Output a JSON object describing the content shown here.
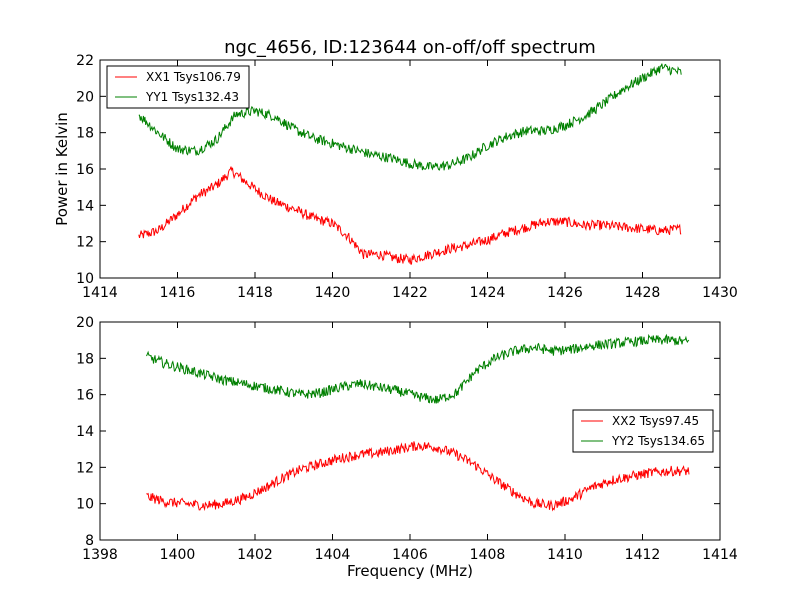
{
  "chart_data": [
    {
      "type": "line",
      "title": "ngc_4656, ID:123644 on-off/off spectrum",
      "xlabel": "",
      "ylabel": "Power in Kelvin",
      "xlim": [
        1414,
        1430
      ],
      "ylim": [
        10,
        22
      ],
      "xticks": [
        1414,
        1416,
        1418,
        1420,
        1422,
        1424,
        1426,
        1428,
        1430
      ],
      "yticks": [
        10,
        12,
        14,
        16,
        18,
        20,
        22
      ],
      "legend": "top-left",
      "grid": false,
      "series": [
        {
          "name": "XX1 Tsys106.79",
          "color": "#ff0000",
          "x": [
            1415.0,
            1415.5,
            1416.0,
            1416.5,
            1417.0,
            1417.4,
            1418.0,
            1418.5,
            1419.0,
            1419.5,
            1420.0,
            1420.4,
            1420.8,
            1421.2,
            1421.6,
            1422.0,
            1422.5,
            1423.0,
            1423.5,
            1424.0,
            1424.5,
            1425.0,
            1425.5,
            1426.0,
            1426.5,
            1427.0,
            1427.5,
            1428.0,
            1428.5,
            1429.0
          ],
          "values": [
            12.3,
            12.6,
            13.5,
            14.5,
            15.1,
            15.9,
            14.9,
            14.2,
            13.8,
            13.3,
            13.0,
            12.3,
            11.3,
            11.3,
            11.1,
            11.0,
            11.3,
            11.6,
            11.8,
            12.1,
            12.5,
            12.8,
            13.1,
            13.1,
            12.9,
            12.9,
            12.8,
            12.7,
            12.6,
            12.7
          ]
        },
        {
          "name": "YY1 Tsys132.43",
          "color": "#008000",
          "x": [
            1415.0,
            1415.5,
            1416.0,
            1416.5,
            1417.0,
            1417.5,
            1418.0,
            1418.5,
            1419.0,
            1419.5,
            1420.0,
            1420.5,
            1421.0,
            1421.5,
            1422.0,
            1422.5,
            1423.0,
            1423.5,
            1424.0,
            1424.5,
            1425.0,
            1425.5,
            1426.0,
            1426.5,
            1427.0,
            1427.5,
            1428.0,
            1428.5,
            1429.0
          ],
          "values": [
            19.0,
            18.0,
            17.1,
            17.0,
            17.6,
            19.0,
            19.2,
            18.9,
            18.2,
            17.7,
            17.4,
            17.1,
            16.8,
            16.6,
            16.3,
            16.1,
            16.2,
            16.6,
            17.3,
            17.8,
            18.1,
            18.1,
            18.4,
            18.9,
            19.6,
            20.4,
            21.0,
            21.6,
            21.3
          ]
        }
      ]
    },
    {
      "type": "line",
      "title": "",
      "xlabel": "Frequency (MHz)",
      "ylabel": "",
      "xlim": [
        1398,
        1414
      ],
      "ylim": [
        8,
        20
      ],
      "xticks": [
        1398,
        1400,
        1402,
        1404,
        1406,
        1408,
        1410,
        1412,
        1414
      ],
      "yticks": [
        8,
        10,
        12,
        14,
        16,
        18,
        20
      ],
      "legend": "center-right",
      "grid": false,
      "series": [
        {
          "name": "XX2 Tsys97.45",
          "color": "#ff0000",
          "x": [
            1399.2,
            1399.7,
            1400.2,
            1400.7,
            1401.2,
            1401.7,
            1402.2,
            1402.7,
            1403.2,
            1403.7,
            1404.2,
            1404.7,
            1405.2,
            1405.7,
            1406.2,
            1406.7,
            1407.2,
            1407.7,
            1408.2,
            1408.7,
            1409.2,
            1409.7,
            1410.2,
            1410.7,
            1411.2,
            1411.7,
            1412.2,
            1412.7,
            1413.2
          ],
          "values": [
            10.4,
            10.1,
            10.0,
            9.9,
            10.0,
            10.3,
            10.8,
            11.4,
            11.9,
            12.2,
            12.5,
            12.7,
            12.8,
            13.0,
            13.2,
            13.1,
            12.7,
            12.1,
            11.3,
            10.6,
            10.0,
            9.9,
            10.3,
            10.9,
            11.3,
            11.5,
            11.7,
            11.8,
            11.8
          ]
        },
        {
          "name": "YY2 Tsys134.65",
          "color": "#008000",
          "x": [
            1399.2,
            1399.7,
            1400.2,
            1400.7,
            1401.2,
            1401.7,
            1402.2,
            1402.7,
            1403.2,
            1403.7,
            1404.2,
            1404.7,
            1405.2,
            1405.7,
            1406.2,
            1406.7,
            1407.2,
            1407.7,
            1408.2,
            1408.7,
            1409.2,
            1409.7,
            1410.2,
            1410.7,
            1411.2,
            1411.7,
            1412.2,
            1412.7,
            1413.2
          ],
          "values": [
            18.1,
            17.7,
            17.4,
            17.1,
            16.8,
            16.6,
            16.4,
            16.2,
            16.0,
            16.1,
            16.4,
            16.6,
            16.4,
            16.2,
            15.9,
            15.7,
            16.1,
            17.3,
            18.0,
            18.4,
            18.6,
            18.4,
            18.5,
            18.7,
            18.8,
            18.9,
            19.0,
            19.0,
            18.9
          ]
        }
      ]
    }
  ]
}
